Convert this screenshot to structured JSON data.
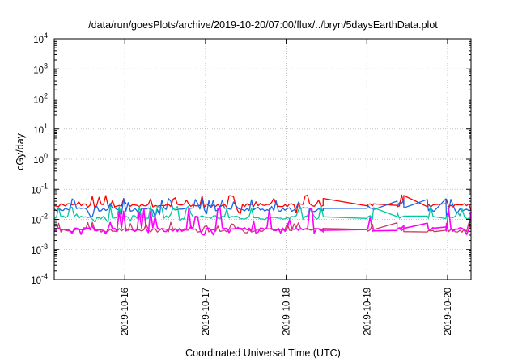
{
  "chart_data": {
    "type": "line",
    "title": "/data/run/goesPlots/archive/2019-10-20/07:00/flux/../bryn/5daysEarthData.plot",
    "xlabel": "Coordinated Universal Time (UTC)",
    "ylabel": "cGy/day",
    "y_scale": "log",
    "ylim": [
      0.0001,
      10000
    ],
    "y_tick_values": [
      0.0001,
      0.001,
      0.01,
      0.1,
      1,
      10,
      100,
      1000,
      10000
    ],
    "y_tick_labels": [
      {
        "base": "10",
        "exp": "-4"
      },
      {
        "base": "10",
        "exp": "-3"
      },
      {
        "base": "10",
        "exp": "-2"
      },
      {
        "base": "10",
        "exp": "-1"
      },
      {
        "base": "10",
        "exp": "0"
      },
      {
        "base": "10",
        "exp": "1"
      },
      {
        "base": "10",
        "exp": "2"
      },
      {
        "base": "10",
        "exp": "3"
      },
      {
        "base": "10",
        "exp": "4"
      }
    ],
    "xlim": [
      "2019-10-15 03:00",
      "2019-10-20 07:00"
    ],
    "x_tick_labels": [
      "2019-10-16",
      "2019-10-17",
      "2019-10-18",
      "2019-10-19",
      "2019-10-20"
    ],
    "x_tick_values": [
      "2019-10-16 00:00",
      "2019-10-17 00:00",
      "2019-10-18 00:00",
      "2019-10-19 00:00",
      "2019-10-20 00:00"
    ],
    "grid": true,
    "legend": "none",
    "series": [
      {
        "color": "#ff0000",
        "base": 0.03,
        "spike_max": 0.065,
        "dip_min": 0.015
      },
      {
        "color": "#1a66e6",
        "base": 0.022,
        "spike_max": 0.05,
        "dip_min": 0.012
      },
      {
        "color": "#00c8a0",
        "base": 0.012,
        "spike_max": 0.03,
        "dip_min": 0.008
      },
      {
        "color": "#c83c64",
        "base": 0.0045,
        "spike_max": 0.008,
        "dip_min": 0.0035
      },
      {
        "color": "#ff00ff",
        "base": 0.0048,
        "spike_max": 0.025,
        "dip_min": 0.003
      }
    ],
    "data_gaps": [
      {
        "from": "2019-10-18 11:00",
        "to": "2019-10-19 00:00"
      },
      {
        "from": "2019-10-19 02:00",
        "to": "2019-10-19 09:00"
      },
      {
        "from": "2019-10-19 11:00",
        "to": "2019-10-19 18:00"
      },
      {
        "from": "2019-10-19 20:00",
        "to": "2019-10-19 23:30"
      }
    ]
  }
}
